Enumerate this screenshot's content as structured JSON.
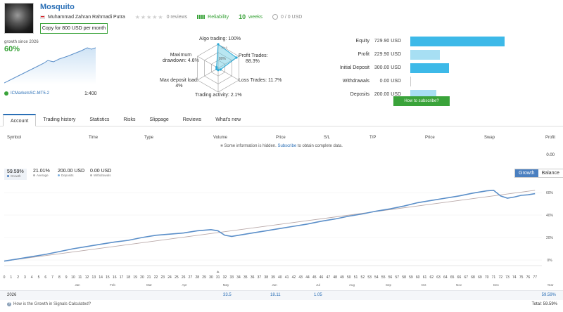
{
  "header": {
    "title": "Mosquito",
    "author": "Muhammad Zahran Rahmadi Putra",
    "reviews": "0 reviews",
    "reliability_label": "Reliability",
    "weeks_value": "10",
    "weeks_label": "weeks",
    "subscribers": "0 / 0 USD",
    "copy_button": "Copy for 800 USD per month"
  },
  "summary": {
    "growth_since": "growth since 2026",
    "growth_pct": "60%",
    "broker": "ICMarketsSC-MT5-2",
    "leverage": "1:400"
  },
  "radar": {
    "algo": "Algo trading: 100%",
    "profit_trades_1": "Profit Trades:",
    "profit_trades_2": "88.3%",
    "loss_trades": "Loss Trades: 11.7%",
    "activity": "Trading activity: 2.1%",
    "max_load_1": "Max deposit load:",
    "max_load_2": "4%",
    "max_dd_1": "Maximum",
    "max_dd_2": "drawdown: 4.6%",
    "center_label": "80%",
    "top_tag": "10+5",
    "values": {
      "algo": 1.0,
      "profit": 0.883,
      "loss": 0.117,
      "activity": 0.021,
      "load": 0.04,
      "drawdown": 0.046
    }
  },
  "finance": [
    {
      "label": "Equity",
      "value": "729.90 USD",
      "amount": 729.9,
      "color": "#3db9e8"
    },
    {
      "label": "Profit",
      "value": "229.90 USD",
      "amount": 229.9,
      "color": "#a7dff3"
    },
    {
      "label": "Initial Deposit",
      "value": "300.00 USD",
      "amount": 300.0,
      "color": "#3db9e8"
    },
    {
      "label": "Withdrawals",
      "value": "0.00 USD",
      "amount": 0,
      "color": "#a7dff3"
    },
    {
      "label": "Deposits",
      "value": "200.00 USD",
      "amount": 200.0,
      "color": "#a7dff3"
    }
  ],
  "subscribe_button": "How to subscribe?",
  "tabs": [
    "Account",
    "Trading history",
    "Statistics",
    "Risks",
    "Slippage",
    "Reviews",
    "What's new"
  ],
  "table": {
    "headers": [
      "Symbol",
      "Time",
      "Type",
      "Volume",
      "Price",
      "S/L",
      "T/P",
      "Price",
      "Swap",
      "Profit"
    ],
    "hidden_note_pre": "Some information is hidden.",
    "hidden_note_link": "Subscribe",
    "hidden_note_post": "to obtain complete data.",
    "profit_total": "0.00"
  },
  "stats": [
    {
      "value": "59.59%",
      "label": "Growth",
      "color": "#4a7fc0"
    },
    {
      "value": "21.01%",
      "label": "Average",
      "color": "#b0b0b0"
    },
    {
      "value": "200.00 USD",
      "label": "Deposits",
      "color": "#7fb0e0"
    },
    {
      "value": "0.00 USD",
      "label": "Withdrawals",
      "color": "#b0b0b0"
    }
  ],
  "toggle": {
    "growth": "Growth",
    "balance": "Balance"
  },
  "chart_data": {
    "type": "line",
    "x_ticks": [
      "0",
      "1",
      "2",
      "3",
      "4",
      "5",
      "6",
      "7",
      "8",
      "9",
      "10",
      "11",
      "12",
      "13",
      "14",
      "15",
      "16",
      "17",
      "18",
      "19",
      "20",
      "21",
      "22",
      "23",
      "24",
      "25",
      "26",
      "27",
      "28",
      "29",
      "30",
      "31",
      "32",
      "33",
      "34",
      "35",
      "36",
      "37",
      "38",
      "39",
      "40",
      "41",
      "42",
      "43",
      "44",
      "45",
      "46",
      "47",
      "48",
      "49",
      "50",
      "51",
      "52",
      "53",
      "54",
      "55",
      "56",
      "57",
      "58",
      "59",
      "60",
      "61",
      "62",
      "63",
      "64",
      "65",
      "66",
      "67",
      "68",
      "69",
      "70",
      "71",
      "72",
      "73",
      "74",
      "75",
      "76",
      "77"
    ],
    "months": [
      "Jan",
      "Feb",
      "Mar",
      "Apr",
      "May",
      "Jun",
      "Jul",
      "Aug",
      "Sep",
      "Oct",
      "Nov",
      "Dec"
    ],
    "y_ticks": [
      "0%",
      "20%",
      "40%",
      "60%"
    ],
    "ylim": [
      -5,
      65
    ],
    "xlim": [
      0,
      78
    ],
    "x_label": "Year",
    "series": [
      {
        "name": "Growth",
        "color": "#5b8fc9",
        "x": [
          0,
          2,
          4,
          6,
          8,
          10,
          12,
          14,
          16,
          18,
          20,
          22,
          24,
          26,
          28,
          30,
          31,
          32,
          33,
          34,
          36,
          38,
          40,
          42,
          44,
          46,
          48,
          50,
          52,
          54,
          56,
          58,
          60,
          62,
          64,
          66,
          68,
          70,
          71,
          72,
          73,
          74,
          75,
          76,
          77
        ],
        "y": [
          -1,
          1,
          3,
          5,
          7.5,
          10,
          12,
          14,
          16,
          17.5,
          20,
          22,
          23,
          24,
          26,
          27,
          26,
          22,
          21,
          22,
          24,
          26,
          28,
          30,
          32,
          34.5,
          36.5,
          39,
          41,
          43.5,
          45.5,
          48,
          51,
          53,
          55,
          57,
          59.5,
          61.5,
          62,
          57,
          55,
          56,
          57.5,
          58,
          59
        ]
      },
      {
        "name": "Trend",
        "color": "#b9a9a9",
        "x": [
          0,
          77
        ],
        "y": [
          -1,
          62
        ]
      }
    ]
  },
  "year_row": {
    "year": "2026",
    "may": "33.5",
    "jun": "18.11",
    "jul": "1.05",
    "total": "59.59%"
  },
  "footer": {
    "link": "How is the Growth in Signals Calculated?",
    "total_label": "Total:",
    "total_value": "59.59%"
  }
}
